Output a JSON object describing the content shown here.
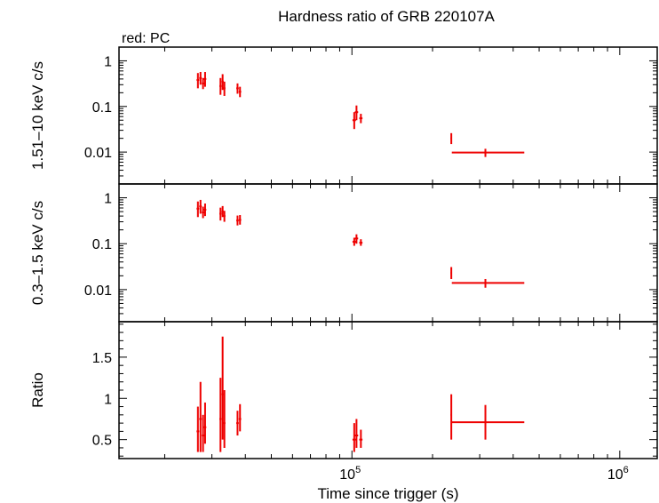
{
  "title": "Hardness ratio of GRB 220107A",
  "legend_text": "red: PC",
  "colors": {
    "series": "#ee0000",
    "axes": "#000000",
    "background": "#ffffff"
  },
  "chart_data": [
    {
      "type": "scatter",
      "panel": "hard",
      "ylabel": "1.51–10 keV c/s",
      "yscale": "log",
      "ylim": [
        0.002,
        2
      ],
      "y_ticks": [
        {
          "value": 1,
          "label": "1"
        },
        {
          "value": 0.1,
          "label": "0.1"
        },
        {
          "value": 0.01,
          "label": "0.01"
        }
      ],
      "series": [
        {
          "x": [
            26600,
            27200,
            27800,
            28300,
            32300,
            32900,
            33400,
            37400,
            38200,
            102000,
            104000,
            108000,
            235000,
            315000
          ],
          "xerr": [
            [
              300,
              300
            ],
            [
              300,
              300
            ],
            [
              300,
              300
            ],
            [
              300,
              300
            ],
            [
              300,
              300
            ],
            [
              300,
              300
            ],
            [
              300,
              300
            ],
            [
              400,
              400
            ],
            [
              400,
              400
            ],
            [
              1500,
              1500
            ],
            [
              1500,
              1500
            ],
            [
              1500,
              1500
            ],
            [
              1500,
              1500
            ],
            [
              79000,
              125000
            ]
          ],
          "y": [
            0.38,
            0.42,
            0.32,
            0.4,
            0.28,
            0.35,
            0.25,
            0.25,
            0.21,
            0.05,
            0.075,
            0.055,
            0.02,
            0.0098
          ],
          "yerr": [
            [
              0.13,
              0.16
            ],
            [
              0.12,
              0.15
            ],
            [
              0.08,
              0.1
            ],
            [
              0.13,
              0.17
            ],
            [
              0.1,
              0.14
            ],
            [
              0.12,
              0.16
            ],
            [
              0.08,
              0.1
            ],
            [
              0.06,
              0.07
            ],
            [
              0.05,
              0.06
            ],
            [
              0.018,
              0.025
            ],
            [
              0.025,
              0.03
            ],
            [
              0.012,
              0.014
            ],
            [
              0.005,
              0.006
            ],
            [
              0.002,
              0.002
            ]
          ]
        }
      ]
    },
    {
      "type": "scatter",
      "panel": "soft",
      "ylabel": "0.3–1.5 keV c/s",
      "yscale": "log",
      "ylim": [
        0.002,
        2
      ],
      "y_ticks": [
        {
          "value": 1,
          "label": "1"
        },
        {
          "value": 0.1,
          "label": "0.1"
        },
        {
          "value": 0.01,
          "label": "0.01"
        }
      ],
      "series": [
        {
          "x": [
            26600,
            27200,
            27800,
            28300,
            32300,
            32900,
            33400,
            37400,
            38200,
            102000,
            104000,
            108000,
            235000,
            315000
          ],
          "xerr": [
            [
              300,
              300
            ],
            [
              300,
              300
            ],
            [
              300,
              300
            ],
            [
              300,
              300
            ],
            [
              300,
              300
            ],
            [
              300,
              300
            ],
            [
              300,
              300
            ],
            [
              400,
              400
            ],
            [
              400,
              400
            ],
            [
              1500,
              1500
            ],
            [
              1500,
              1500
            ],
            [
              1500,
              1500
            ],
            [
              1500,
              1500
            ],
            [
              79000,
              125000
            ]
          ],
          "y": [
            0.58,
            0.65,
            0.48,
            0.55,
            0.45,
            0.5,
            0.4,
            0.32,
            0.33,
            0.11,
            0.13,
            0.105,
            0.023,
            0.014
          ],
          "yerr": [
            [
              0.2,
              0.25
            ],
            [
              0.2,
              0.25
            ],
            [
              0.12,
              0.16
            ],
            [
              0.15,
              0.2
            ],
            [
              0.13,
              0.16
            ],
            [
              0.12,
              0.16
            ],
            [
              0.1,
              0.12
            ],
            [
              0.07,
              0.09
            ],
            [
              0.07,
              0.09
            ],
            [
              0.02,
              0.025
            ],
            [
              0.03,
              0.03
            ],
            [
              0.015,
              0.02
            ],
            [
              0.006,
              0.008
            ],
            [
              0.003,
              0.003
            ]
          ]
        }
      ]
    },
    {
      "type": "scatter",
      "panel": "ratio",
      "ylabel": "Ratio",
      "xlabel": "Time since trigger (s)",
      "xscale": "log",
      "xlim": [
        13500,
        1380000
      ],
      "yscale": "linear",
      "ylim": [
        0.27,
        1.93
      ],
      "x_ticks": [
        {
          "value": 100000,
          "base": "10",
          "exp": "5"
        },
        {
          "value": 1000000,
          "base": "10",
          "exp": "6"
        }
      ],
      "y_ticks": [
        {
          "value": 0.5,
          "label": "0.5"
        },
        {
          "value": 1,
          "label": "1"
        },
        {
          "value": 1.5,
          "label": "1.5"
        }
      ],
      "series": [
        {
          "x": [
            26600,
            27200,
            27800,
            28300,
            32300,
            32900,
            33400,
            37400,
            38200,
            102000,
            104000,
            108000,
            235000,
            315000
          ],
          "xerr": [
            [
              300,
              300
            ],
            [
              300,
              300
            ],
            [
              300,
              300
            ],
            [
              300,
              300
            ],
            [
              300,
              300
            ],
            [
              300,
              300
            ],
            [
              300,
              300
            ],
            [
              400,
              400
            ],
            [
              400,
              400
            ],
            [
              1500,
              1500
            ],
            [
              1500,
              1500
            ],
            [
              1500,
              1500
            ],
            [
              1500,
              1500
            ],
            [
              79000,
              125000
            ]
          ],
          "y": [
            0.6,
            0.75,
            0.55,
            0.65,
            0.75,
            1.05,
            0.7,
            0.7,
            0.75,
            0.5,
            0.55,
            0.5,
            0.8,
            0.71
          ],
          "yerr": [
            [
              0.25,
              0.3
            ],
            [
              0.4,
              0.45
            ],
            [
              0.2,
              0.25
            ],
            [
              0.2,
              0.3
            ],
            [
              0.4,
              0.5
            ],
            [
              0.55,
              0.7
            ],
            [
              0.3,
              0.4
            ],
            [
              0.15,
              0.15
            ],
            [
              0.15,
              0.18
            ],
            [
              0.15,
              0.2
            ],
            [
              0.15,
              0.2
            ],
            [
              0.1,
              0.12
            ],
            [
              0.3,
              0.25
            ],
            [
              0.21,
              0.21
            ]
          ]
        }
      ]
    }
  ]
}
